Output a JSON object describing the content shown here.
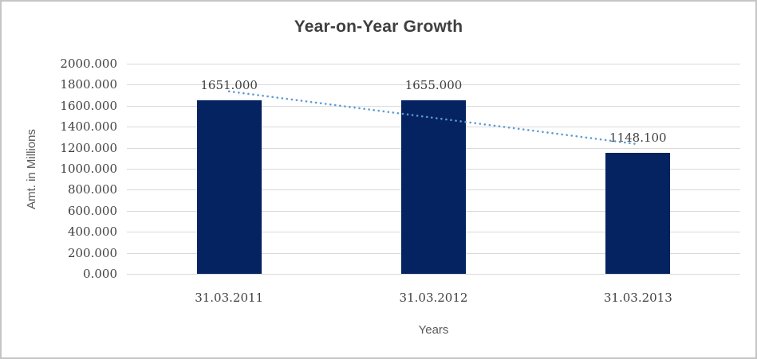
{
  "chart_data": {
    "type": "bar",
    "title": "Year-on-Year Growth",
    "xlabel": "Years",
    "ylabel": "Amt. in Millions",
    "categories": [
      "31.03.2011",
      "31.03.2012",
      "31.03.2013"
    ],
    "series": [
      {
        "name": "Amt. in Millions",
        "values": [
          1651.0,
          1655.0,
          1148.1
        ]
      }
    ],
    "data_labels": [
      "1651.000",
      "1655.000",
      "1148.100"
    ],
    "ylim": [
      0,
      2000
    ],
    "ytick_step": 200,
    "ytick_labels": [
      "0.000",
      "200.000",
      "400.000",
      "600.000",
      "800.000",
      "1000.000",
      "1200.000",
      "1400.000",
      "1600.000",
      "1800.000",
      "2000.000"
    ],
    "grid": true,
    "legend_position": "none",
    "trendline": {
      "type": "linear",
      "style": "dotted"
    },
    "colors": {
      "bar": "#052261",
      "trendline": "#5b9bd5",
      "gridline": "#d9d9d9",
      "title_text": "#3f3f3f",
      "tick_text": "#404040",
      "axis_title_text": "#595959",
      "background": "#ffffff",
      "frame_border": "#c5c5c5"
    }
  }
}
